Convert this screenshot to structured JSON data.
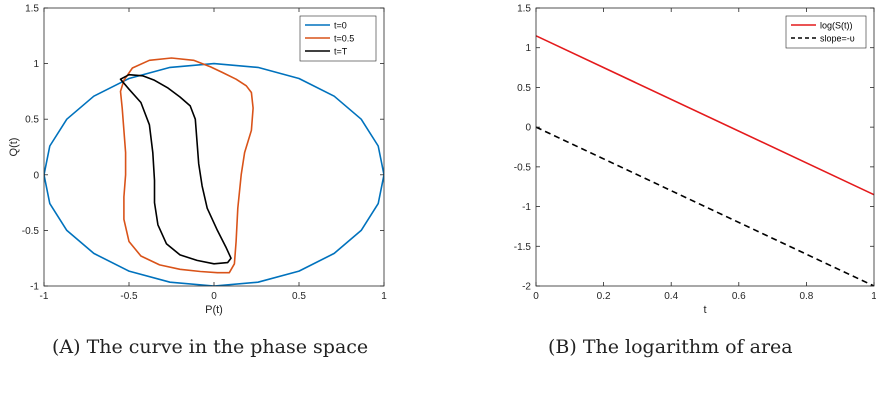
{
  "captions": {
    "a_label": "(A)",
    "a_text": "The curve in the phase space",
    "b_label": "(B)",
    "b_text": "The logarithm of area"
  },
  "chart_data": [
    {
      "type": "line",
      "xlabel": "P(t)",
      "ylabel": "Q(t)",
      "xlim": [
        -1,
        1
      ],
      "ylim": [
        -1,
        1.5
      ],
      "xticks": [
        -1,
        -0.5,
        0,
        0.5,
        1
      ],
      "yticks": [
        -1,
        -0.5,
        0,
        0.5,
        1,
        1.5
      ],
      "grid": false,
      "legend_position": "top-right",
      "series": [
        {
          "name": "t=0",
          "color": "#0072BD",
          "closed": true,
          "points": [
            [
              1,
              0
            ],
            [
              0.966,
              0.259
            ],
            [
              0.866,
              0.5
            ],
            [
              0.707,
              0.707
            ],
            [
              0.5,
              0.866
            ],
            [
              0.259,
              0.966
            ],
            [
              0,
              1
            ],
            [
              -0.259,
              0.966
            ],
            [
              -0.5,
              0.866
            ],
            [
              -0.707,
              0.707
            ],
            [
              -0.866,
              0.5
            ],
            [
              -0.966,
              0.259
            ],
            [
              -1,
              0
            ],
            [
              -0.966,
              -0.259
            ],
            [
              -0.866,
              -0.5
            ],
            [
              -0.707,
              -0.707
            ],
            [
              -0.5,
              -0.866
            ],
            [
              -0.259,
              -0.966
            ],
            [
              0,
              -1
            ],
            [
              0.259,
              -0.966
            ],
            [
              0.5,
              -0.866
            ],
            [
              0.707,
              -0.707
            ],
            [
              0.866,
              -0.5
            ],
            [
              0.966,
              -0.259
            ]
          ]
        },
        {
          "name": "t=0.5",
          "color": "#D95319",
          "closed": true,
          "points": [
            [
              -0.53,
              0.85
            ],
            [
              -0.48,
              0.96
            ],
            [
              -0.38,
              1.03
            ],
            [
              -0.25,
              1.05
            ],
            [
              -0.12,
              1.03
            ],
            [
              -0.02,
              0.97
            ],
            [
              0.05,
              0.92
            ],
            [
              0.13,
              0.86
            ],
            [
              0.19,
              0.8
            ],
            [
              0.22,
              0.74
            ],
            [
              0.23,
              0.6
            ],
            [
              0.22,
              0.4
            ],
            [
              0.18,
              0.2
            ],
            [
              0.16,
              0.0
            ],
            [
              0.14,
              -0.3
            ],
            [
              0.13,
              -0.6
            ],
            [
              0.12,
              -0.8
            ],
            [
              0.09,
              -0.88
            ],
            [
              0.02,
              -0.88
            ],
            [
              -0.08,
              -0.87
            ],
            [
              -0.2,
              -0.85
            ],
            [
              -0.32,
              -0.81
            ],
            [
              -0.43,
              -0.73
            ],
            [
              -0.5,
              -0.6
            ],
            [
              -0.53,
              -0.4
            ],
            [
              -0.53,
              -0.2
            ],
            [
              -0.52,
              0.0
            ],
            [
              -0.52,
              0.2
            ],
            [
              -0.53,
              0.4
            ],
            [
              -0.54,
              0.6
            ],
            [
              -0.55,
              0.75
            ],
            [
              -0.53,
              0.85
            ]
          ]
        },
        {
          "name": "t=T",
          "color": "#000000",
          "closed": true,
          "points": [
            [
              -0.55,
              0.86
            ],
            [
              -0.5,
              0.9
            ],
            [
              -0.42,
              0.89
            ],
            [
              -0.35,
              0.85
            ],
            [
              -0.27,
              0.78
            ],
            [
              -0.2,
              0.7
            ],
            [
              -0.14,
              0.62
            ],
            [
              -0.11,
              0.5
            ],
            [
              -0.1,
              0.3
            ],
            [
              -0.09,
              0.1
            ],
            [
              -0.07,
              -0.1
            ],
            [
              -0.04,
              -0.3
            ],
            [
              0.02,
              -0.5
            ],
            [
              0.07,
              -0.65
            ],
            [
              0.1,
              -0.75
            ],
            [
              0.08,
              -0.79
            ],
            [
              0.0,
              -0.8
            ],
            [
              -0.1,
              -0.77
            ],
            [
              -0.2,
              -0.72
            ],
            [
              -0.28,
              -0.62
            ],
            [
              -0.33,
              -0.45
            ],
            [
              -0.35,
              -0.25
            ],
            [
              -0.35,
              -0.05
            ],
            [
              -0.36,
              0.2
            ],
            [
              -0.38,
              0.45
            ],
            [
              -0.43,
              0.65
            ],
            [
              -0.5,
              0.77
            ],
            [
              -0.55,
              0.86
            ]
          ]
        }
      ]
    },
    {
      "type": "line",
      "xlabel": "t",
      "ylabel": "",
      "xlim": [
        0,
        1
      ],
      "ylim": [
        -2,
        1.5
      ],
      "xticks": [
        0,
        0.2,
        0.4,
        0.6,
        0.8,
        1
      ],
      "yticks": [
        -2,
        -1.5,
        -1,
        -0.5,
        0,
        0.5,
        1,
        1.5
      ],
      "grid": false,
      "legend_position": "top-right",
      "series": [
        {
          "name": "log(S(t))",
          "color": "#E41A1C",
          "dash": false,
          "x": [
            0,
            1
          ],
          "y": [
            1.15,
            -0.85
          ]
        },
        {
          "name": "slope=-υ",
          "color": "#000000",
          "dash": true,
          "x": [
            0,
            1
          ],
          "y": [
            0,
            -2
          ]
        }
      ]
    }
  ]
}
